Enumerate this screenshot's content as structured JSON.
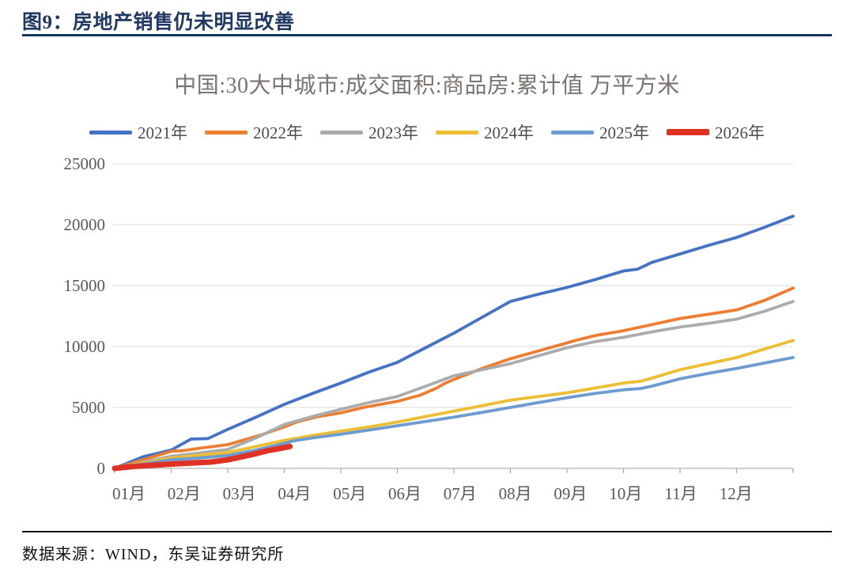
{
  "header": {
    "title": "图9：房地产销售仍未明显改善"
  },
  "footer": {
    "source": "数据来源：WIND，东吴证券研究所"
  },
  "colors": {
    "header_navy": "#1F3864",
    "title_gray": "#7a736f",
    "axis_text": "#595959",
    "gridline": "#D9D9D9",
    "axis_line": "#C2C2C2",
    "tick": "#A6A6A6",
    "footer_rule": "#141414"
  },
  "chart_data": {
    "type": "line",
    "title": "中国:30大中城市:成交面积:商品房:累计值 万平方米",
    "unit": "万平方米",
    "xlabel": "",
    "ylabel": "",
    "x_labels": [
      "01月",
      "02月",
      "03月",
      "04月",
      "05月",
      "06月",
      "07月",
      "08月",
      "09月",
      "10月",
      "11月",
      "12月"
    ],
    "x_axis_note": "x in months, 1 = Jan 1, 13 = Dec 31, daily cumulative curves",
    "ylim": [
      0,
      25000
    ],
    "yticks": [
      0,
      5000,
      10000,
      15000,
      20000,
      25000
    ],
    "grid": "horizontal",
    "legend_position": "top",
    "series": [
      {
        "name": "2021年",
        "color": "#4472C4",
        "width": 3.8,
        "points": [
          [
            1,
            0
          ],
          [
            1.5,
            950
          ],
          [
            2,
            1500
          ],
          [
            2.35,
            2400
          ],
          [
            2.65,
            2450
          ],
          [
            3,
            3200
          ],
          [
            3.5,
            4200
          ],
          [
            4,
            5250
          ],
          [
            4.5,
            6150
          ],
          [
            5,
            7000
          ],
          [
            5.5,
            7900
          ],
          [
            6,
            8700
          ],
          [
            6.5,
            9900
          ],
          [
            7,
            11100
          ],
          [
            7.5,
            12400
          ],
          [
            8,
            13700
          ],
          [
            8.5,
            14300
          ],
          [
            9,
            14850
          ],
          [
            9.5,
            15500
          ],
          [
            10,
            16200
          ],
          [
            10.25,
            16350
          ],
          [
            10.5,
            16900
          ],
          [
            11,
            17600
          ],
          [
            11.5,
            18300
          ],
          [
            12,
            18950
          ],
          [
            12.5,
            19800
          ],
          [
            13,
            20700
          ]
        ]
      },
      {
        "name": "2022年",
        "color": "#ED7D31",
        "width": 3.8,
        "points": [
          [
            1,
            0
          ],
          [
            1.5,
            700
          ],
          [
            2,
            1400
          ],
          [
            2.2,
            1450
          ],
          [
            2.5,
            1650
          ],
          [
            3,
            1950
          ],
          [
            3.3,
            2350
          ],
          [
            3.6,
            2750
          ],
          [
            4,
            3400
          ],
          [
            4.25,
            3850
          ],
          [
            4.6,
            4250
          ],
          [
            5,
            4550
          ],
          [
            5.4,
            5000
          ],
          [
            6,
            5500
          ],
          [
            6.4,
            6000
          ],
          [
            6.7,
            6600
          ],
          [
            6.85,
            7000
          ],
          [
            7,
            7300
          ],
          [
            7.5,
            8200
          ],
          [
            8,
            9000
          ],
          [
            8.5,
            9650
          ],
          [
            9,
            10300
          ],
          [
            9.15,
            10500
          ],
          [
            9.5,
            10900
          ],
          [
            10,
            11300
          ],
          [
            10.5,
            11800
          ],
          [
            11,
            12300
          ],
          [
            11.5,
            12650
          ],
          [
            12,
            13000
          ],
          [
            12.5,
            13800
          ],
          [
            13,
            14800
          ]
        ]
      },
      {
        "name": "2023年",
        "color": "#ABABAB",
        "width": 3.8,
        "points": [
          [
            1,
            0
          ],
          [
            1.5,
            500
          ],
          [
            2,
            1000
          ],
          [
            2.3,
            1150
          ],
          [
            3,
            1550
          ],
          [
            3.5,
            2500
          ],
          [
            4,
            3600
          ],
          [
            4.5,
            4250
          ],
          [
            5,
            4850
          ],
          [
            5.5,
            5400
          ],
          [
            6,
            5900
          ],
          [
            6.5,
            6750
          ],
          [
            7,
            7600
          ],
          [
            7.5,
            8100
          ],
          [
            8,
            8600
          ],
          [
            8.5,
            9250
          ],
          [
            9,
            9900
          ],
          [
            9.25,
            10150
          ],
          [
            9.5,
            10400
          ],
          [
            10,
            10750
          ],
          [
            10.5,
            11200
          ],
          [
            11,
            11600
          ],
          [
            11.5,
            11900
          ],
          [
            12,
            12250
          ],
          [
            12.5,
            12900
          ],
          [
            13,
            13700
          ]
        ]
      },
      {
        "name": "2024年",
        "color": "#EDBE33",
        "width": 3.8,
        "points": [
          [
            1,
            0
          ],
          [
            1.5,
            420
          ],
          [
            2,
            850
          ],
          [
            2.5,
            1080
          ],
          [
            3,
            1300
          ],
          [
            3.5,
            1800
          ],
          [
            4,
            2300
          ],
          [
            4.5,
            2700
          ],
          [
            5,
            3050
          ],
          [
            5.5,
            3400
          ],
          [
            6,
            3800
          ],
          [
            6.5,
            4250
          ],
          [
            7,
            4700
          ],
          [
            7.5,
            5150
          ],
          [
            8,
            5600
          ],
          [
            8.5,
            5900
          ],
          [
            9,
            6200
          ],
          [
            9.5,
            6600
          ],
          [
            10,
            7000
          ],
          [
            10.3,
            7150
          ],
          [
            10.5,
            7400
          ],
          [
            11,
            8100
          ],
          [
            11.5,
            8600
          ],
          [
            12,
            9100
          ],
          [
            12.5,
            9800
          ],
          [
            13,
            10500
          ]
        ]
      },
      {
        "name": "2025年",
        "color": "#6C9BD2",
        "width": 3.8,
        "points": [
          [
            1,
            0
          ],
          [
            1.5,
            350
          ],
          [
            2,
            700
          ],
          [
            2.5,
            850
          ],
          [
            3,
            1050
          ],
          [
            3.5,
            1500
          ],
          [
            4,
            2050
          ],
          [
            4.15,
            2250
          ],
          [
            4.5,
            2500
          ],
          [
            5,
            2800
          ],
          [
            5.5,
            3150
          ],
          [
            6,
            3500
          ],
          [
            6.5,
            3850
          ],
          [
            7,
            4200
          ],
          [
            7.5,
            4600
          ],
          [
            8,
            5000
          ],
          [
            8.5,
            5400
          ],
          [
            9,
            5800
          ],
          [
            9.5,
            6150
          ],
          [
            10,
            6450
          ],
          [
            10.3,
            6550
          ],
          [
            10.5,
            6750
          ],
          [
            11,
            7350
          ],
          [
            11.5,
            7800
          ],
          [
            12,
            8200
          ],
          [
            12.5,
            8650
          ],
          [
            13,
            9100
          ]
        ]
      },
      {
        "name": "2026年",
        "color": "#E03224",
        "width": 7,
        "points": [
          [
            1,
            0
          ],
          [
            1.4,
            180
          ],
          [
            2,
            350
          ],
          [
            2.3,
            430
          ],
          [
            2.7,
            520
          ],
          [
            3,
            700
          ],
          [
            3.4,
            1100
          ],
          [
            3.7,
            1450
          ],
          [
            4,
            1700
          ],
          [
            4.1,
            1800
          ]
        ]
      }
    ]
  }
}
